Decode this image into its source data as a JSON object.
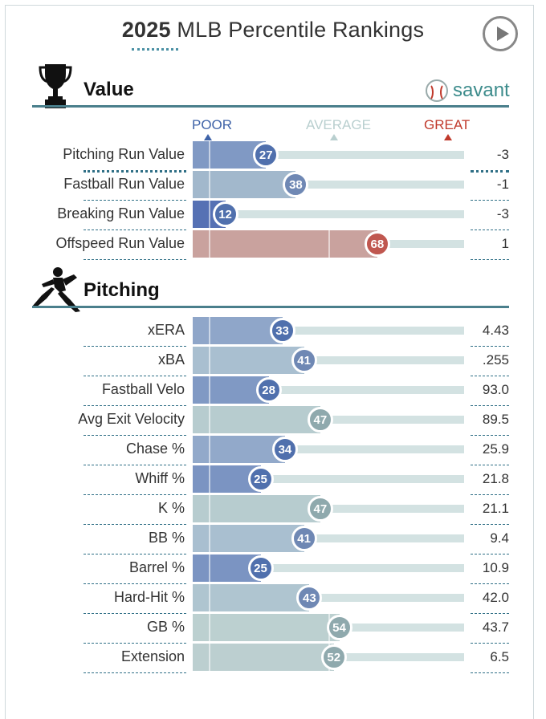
{
  "header": {
    "year": "2025",
    "title_rest": "MLB Percentile Rankings",
    "brand": "savant"
  },
  "icons": {
    "play": "play-icon",
    "trophy": "trophy-icon",
    "pitcher": "pitcher-icon",
    "baseball": "baseball-icon"
  },
  "scale": {
    "poor": "POOR",
    "average": "AVERAGE",
    "great": "GREAT",
    "colors": {
      "poor": "#3f63a8",
      "average": "#b9cfcf",
      "great": "#c0392b"
    }
  },
  "sections": {
    "value": "Value",
    "pitching": "Pitching"
  },
  "chart_data": {
    "type": "bar",
    "title": "2025 MLB Percentile Rankings",
    "xlim": [
      0,
      100
    ],
    "groups": [
      {
        "name": "Value",
        "rows": [
          {
            "label": "Pitching Run Value",
            "percentile": 27,
            "value": "-3",
            "color": "#8099c4"
          },
          {
            "label": "Fastball Run Value",
            "percentile": 38,
            "value": "-1",
            "color": "#a2b8cc"
          },
          {
            "label": "Breaking Run Value",
            "percentile": 12,
            "value": "-3",
            "color": "#5671b4"
          },
          {
            "label": "Offspeed Run Value",
            "percentile": 68,
            "value": "1",
            "color": "#c9a29e"
          }
        ]
      },
      {
        "name": "Pitching",
        "rows": [
          {
            "label": "xERA",
            "percentile": 33,
            "value": "4.43",
            "color": "#8fa6c9"
          },
          {
            "label": "xBA",
            "percentile": 41,
            "value": ".255",
            "color": "#a9bfd0"
          },
          {
            "label": "Fastball Velo",
            "percentile": 28,
            "value": "93.0",
            "color": "#8099c4"
          },
          {
            "label": "Avg Exit Velocity",
            "percentile": 47,
            "value": "89.5",
            "color": "#b7cccf"
          },
          {
            "label": "Chase %",
            "percentile": 34,
            "value": "25.9",
            "color": "#92a9ca"
          },
          {
            "label": "Whiff %",
            "percentile": 25,
            "value": "21.8",
            "color": "#7b94c2"
          },
          {
            "label": "K %",
            "percentile": 47,
            "value": "21.1",
            "color": "#b7cccf"
          },
          {
            "label": "BB %",
            "percentile": 41,
            "value": "9.4",
            "color": "#a9bfd0"
          },
          {
            "label": "Barrel %",
            "percentile": 25,
            "value": "10.9",
            "color": "#7b94c2"
          },
          {
            "label": "Hard-Hit %",
            "percentile": 43,
            "value": "42.0",
            "color": "#afc5d0"
          },
          {
            "label": "GB %",
            "percentile": 54,
            "value": "43.7",
            "color": "#bcd0d0"
          },
          {
            "label": "Extension",
            "percentile": 52,
            "value": "6.5",
            "color": "#bccfd0"
          }
        ]
      }
    ]
  }
}
